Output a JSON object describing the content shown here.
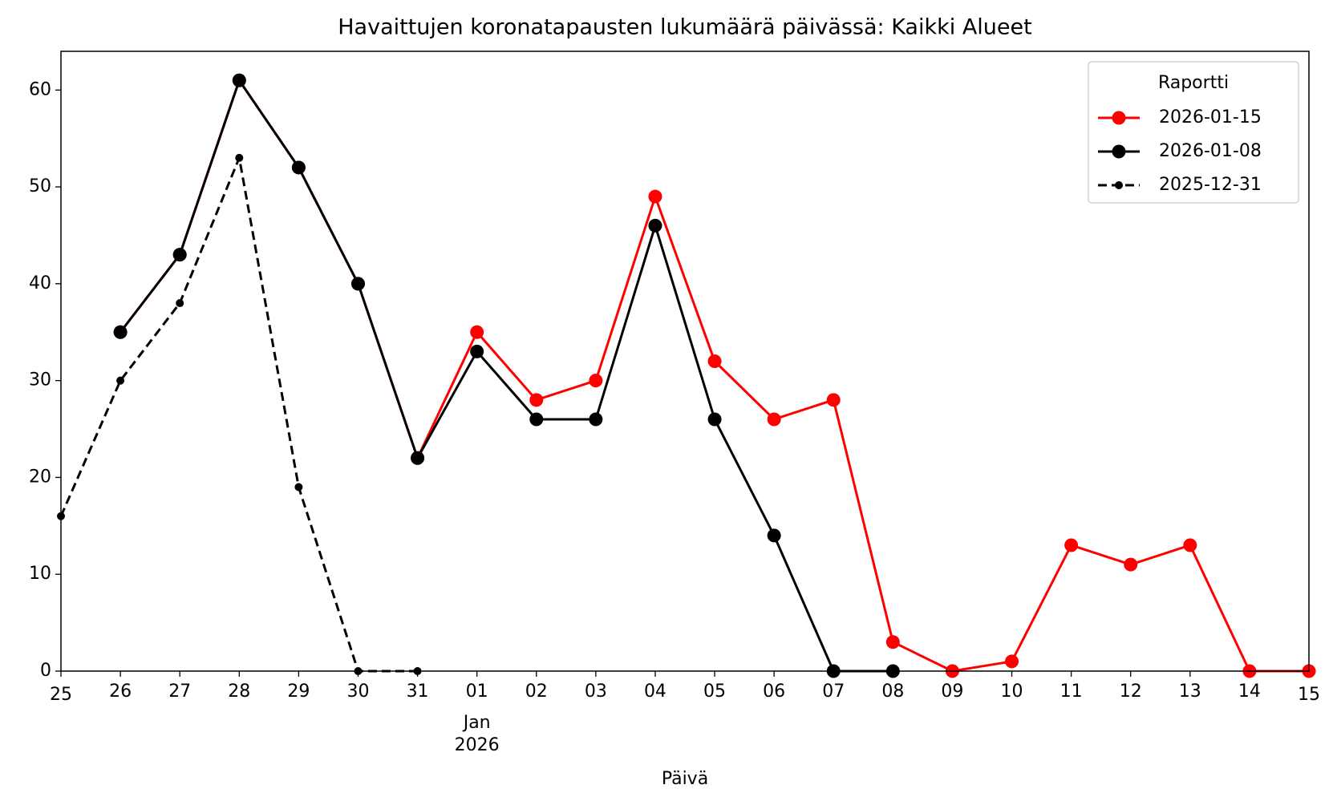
{
  "chart_data": {
    "type": "line",
    "title": "Havaittujen koronatapausten lukumäärä päivässä: Kaikki Alueet",
    "x_label": "Päivä",
    "legend_title": "Raportti",
    "legend_position": "upper right",
    "x": [
      "2025-12-25",
      "2025-12-26",
      "2025-12-27",
      "2025-12-28",
      "2025-12-29",
      "2025-12-30",
      "2025-12-31",
      "2026-01-01",
      "2026-01-02",
      "2026-01-03",
      "2026-01-04",
      "2026-01-05",
      "2026-01-06",
      "2026-01-07",
      "2026-01-08",
      "2026-01-09",
      "2026-01-10",
      "2026-01-11",
      "2026-01-12",
      "2026-01-13",
      "2026-01-14",
      "2026-01-15"
    ],
    "series": [
      {
        "name": "2026-01-15",
        "color": "#ff0000",
        "linestyle": "solid",
        "values": [
          null,
          35,
          43,
          61,
          52,
          40,
          22,
          35,
          28,
          30,
          49,
          32,
          26,
          28,
          3,
          0,
          1,
          13,
          11,
          13,
          0,
          0
        ]
      },
      {
        "name": "2026-01-08",
        "color": "#000000",
        "linestyle": "solid",
        "values": [
          null,
          35,
          43,
          61,
          52,
          40,
          22,
          33,
          26,
          26,
          46,
          26,
          14,
          0,
          0,
          null,
          null,
          null,
          null,
          null,
          null,
          null
        ]
      },
      {
        "name": "2025-12-31",
        "color": "#000000",
        "linestyle": "dashed",
        "values": [
          16,
          30,
          38,
          53,
          19,
          0,
          0,
          null,
          null,
          null,
          null,
          null,
          null,
          null,
          null,
          null,
          null,
          null,
          null,
          null,
          null,
          null
        ]
      }
    ],
    "xlim": [
      "2025-12-25",
      "2026-01-15"
    ],
    "xticks": [
      {
        "value": "2025-12-25",
        "label": "25"
      },
      {
        "value": "2025-12-26",
        "label": "26"
      },
      {
        "value": "2025-12-27",
        "label": "27"
      },
      {
        "value": "2025-12-28",
        "label": "28"
      },
      {
        "value": "2025-12-29",
        "label": "29"
      },
      {
        "value": "2025-12-30",
        "label": "30"
      },
      {
        "value": "2025-12-31",
        "label": "31"
      },
      {
        "value": "2026-01-01",
        "label": "01"
      },
      {
        "value": "2026-01-02",
        "label": "02"
      },
      {
        "value": "2026-01-03",
        "label": "03"
      },
      {
        "value": "2026-01-04",
        "label": "04"
      },
      {
        "value": "2026-01-05",
        "label": "05"
      },
      {
        "value": "2026-01-06",
        "label": "06"
      },
      {
        "value": "2026-01-07",
        "label": "07"
      },
      {
        "value": "2026-01-08",
        "label": "08"
      },
      {
        "value": "2026-01-09",
        "label": "09"
      },
      {
        "value": "2026-01-10",
        "label": "10"
      },
      {
        "value": "2026-01-11",
        "label": "11"
      },
      {
        "value": "2026-01-12",
        "label": "12"
      },
      {
        "value": "2026-01-13",
        "label": "13"
      },
      {
        "value": "2026-01-14",
        "label": "14"
      },
      {
        "value": "2026-01-15",
        "label": "15"
      }
    ],
    "x_month_label": "Jan",
    "x_year_label": "2026",
    "ylim": [
      0,
      64
    ],
    "yticks": [
      0,
      10,
      20,
      30,
      40,
      50,
      60
    ],
    "grid": false
  }
}
